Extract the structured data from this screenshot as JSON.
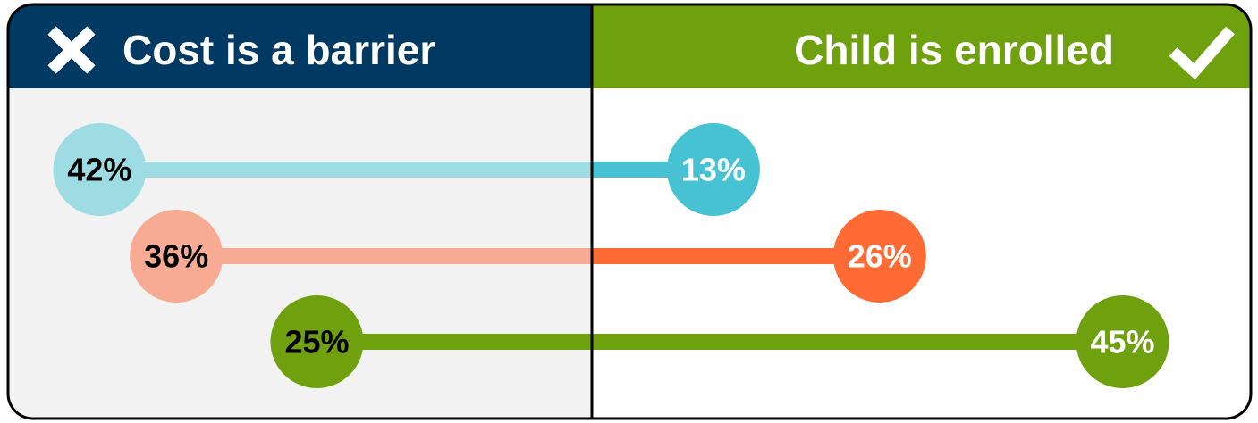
{
  "chart_data": {
    "type": "diverging-dot",
    "series": [
      {
        "name": "Cost is a barrier",
        "header_color": "#003a62",
        "colors": [
          "#9edce3",
          "#f8ab93",
          "#6fa00e"
        ],
        "values": [
          42,
          36,
          25
        ],
        "value_labels": [
          "42%",
          "36%",
          "25%"
        ]
      },
      {
        "name": "Child is enrolled",
        "header_color": "#6fa00e",
        "colors": [
          "#47c2d3",
          "#ff6a35",
          "#6fa00e"
        ],
        "values": [
          13,
          26,
          45
        ],
        "value_labels": [
          "13%",
          "26%",
          "45%"
        ]
      }
    ]
  }
}
